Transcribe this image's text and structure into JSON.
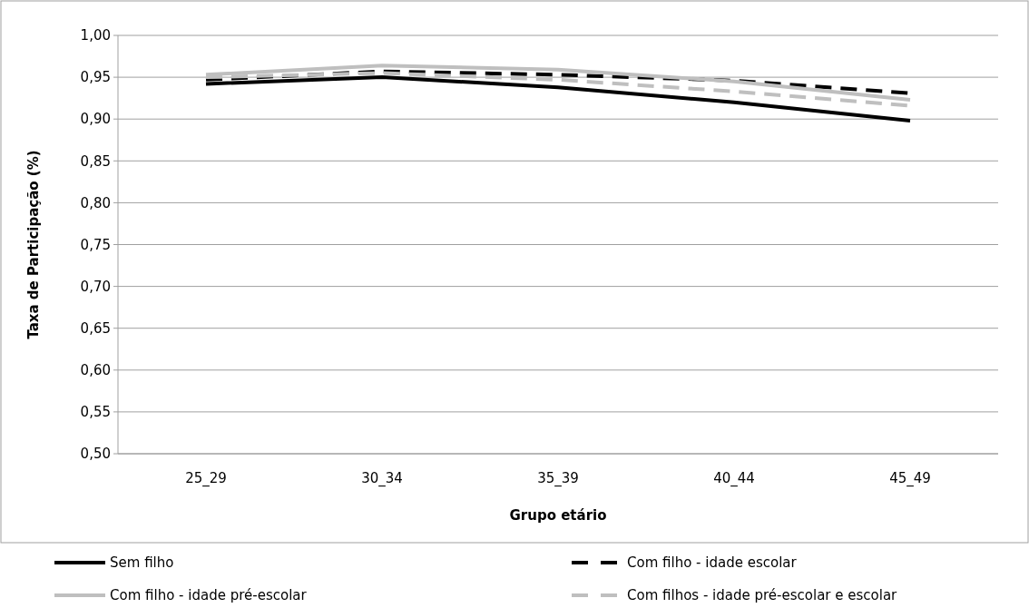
{
  "chart_data": {
    "type": "line",
    "xlabel": "Grupo etário",
    "ylabel": "Taxa de Participação  (%)",
    "categories": [
      "25_29",
      "30_34",
      "35_39",
      "40_44",
      "45_49"
    ],
    "series": [
      {
        "name": "Sem filho",
        "color": "#000000",
        "line_style": "solid",
        "values": [
          0.942,
          0.95,
          0.938,
          0.92,
          0.898
        ]
      },
      {
        "name": "Com filho - idade escolar",
        "color": "#000000",
        "line_style": "dashed",
        "values": [
          0.947,
          0.957,
          0.953,
          0.946,
          0.931
        ]
      },
      {
        "name": "Com filho - idade pré-escolar",
        "color": "#bfbfbf",
        "line_style": "solid",
        "values": [
          0.953,
          0.964,
          0.959,
          0.945,
          0.923
        ]
      },
      {
        "name": "Com filhos - idade pré-escolar e escolar",
        "color": "#bfbfbf",
        "line_style": "dashed",
        "values": [
          0.95,
          0.955,
          0.947,
          0.933,
          0.916
        ]
      }
    ],
    "ylim": [
      0.5,
      1.0
    ],
    "yticks": [
      {
        "value": 0.5,
        "label": "0,50"
      },
      {
        "value": 0.55,
        "label": "0,55"
      },
      {
        "value": 0.6,
        "label": "0,60"
      },
      {
        "value": 0.65,
        "label": "0,65"
      },
      {
        "value": 0.7,
        "label": "0,70"
      },
      {
        "value": 0.75,
        "label": "0,75"
      },
      {
        "value": 0.8,
        "label": "0,80"
      },
      {
        "value": 0.85,
        "label": "0,85"
      },
      {
        "value": 0.9,
        "label": "0,90"
      },
      {
        "value": 0.95,
        "label": "0,95"
      },
      {
        "value": 1.0,
        "label": "1,00"
      }
    ],
    "grid": "y",
    "legend": "bottom",
    "marker": "none"
  }
}
